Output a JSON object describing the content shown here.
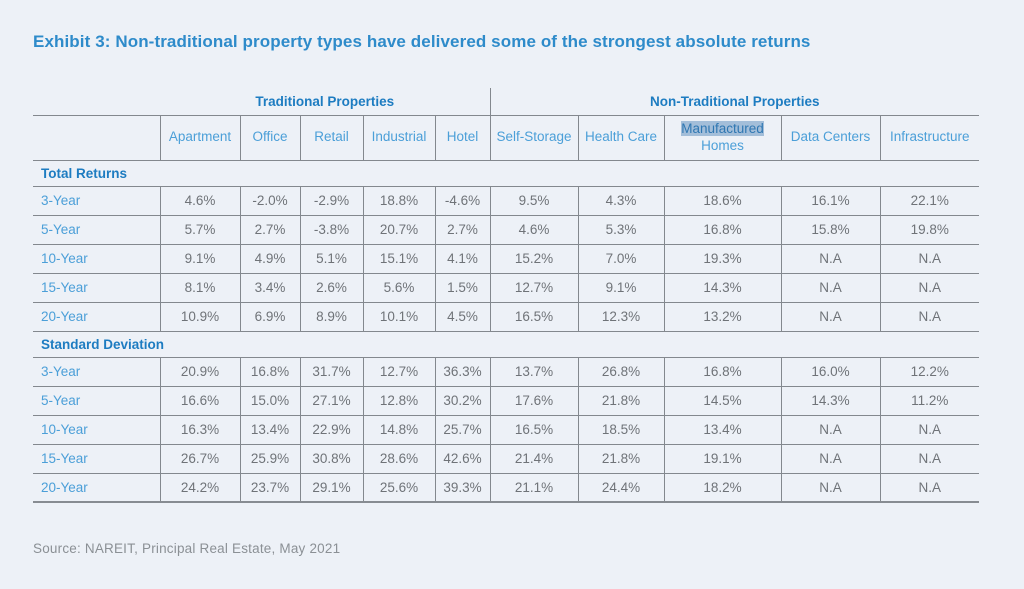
{
  "title": "Exhibit 3: Non-traditional property types have delivered some of the strongest absolute returns",
  "source": "Source: NAREIT, Principal Real Estate, May 2021",
  "colors": {
    "background": "#edf1f7",
    "title_blue": "#2e8bca",
    "header_blue": "#1d7cc1",
    "light_blue": "#4b9fd8",
    "value_gray": "#6f7378",
    "border_gray": "#83888e",
    "selection_highlight": "#a3bed9"
  },
  "table": {
    "group_headers": [
      {
        "label": "Traditional Properties",
        "span": 5
      },
      {
        "label": "Non-Traditional Properties",
        "span": 5
      }
    ],
    "columns": [
      {
        "label": "Apartment"
      },
      {
        "label": "Office"
      },
      {
        "label": "Retail"
      },
      {
        "label": "Industrial"
      },
      {
        "label": "Hotel"
      },
      {
        "label": "Self-Storage"
      },
      {
        "label": "Health Care"
      },
      {
        "label": "Manufactured Homes",
        "lines": [
          "Manufactured",
          "Homes"
        ],
        "highlighted_line": 0
      },
      {
        "label": "Data Centers"
      },
      {
        "label": "Infrastructure"
      }
    ],
    "sections": [
      {
        "label": "Total Returns",
        "rows": [
          {
            "label": "3-Year",
            "values": [
              "4.6%",
              "-2.0%",
              "-2.9%",
              "18.8%",
              "-4.6%",
              "9.5%",
              "4.3%",
              "18.6%",
              "16.1%",
              "22.1%"
            ]
          },
          {
            "label": "5-Year",
            "values": [
              "5.7%",
              "2.7%",
              "-3.8%",
              "20.7%",
              "2.7%",
              "4.6%",
              "5.3%",
              "16.8%",
              "15.8%",
              "19.8%"
            ]
          },
          {
            "label": "10-Year",
            "values": [
              "9.1%",
              "4.9%",
              "5.1%",
              "15.1%",
              "4.1%",
              "15.2%",
              "7.0%",
              "19.3%",
              "N.A",
              "N.A"
            ]
          },
          {
            "label": "15-Year",
            "values": [
              "8.1%",
              "3.4%",
              "2.6%",
              "5.6%",
              "1.5%",
              "12.7%",
              "9.1%",
              "14.3%",
              "N.A",
              "N.A"
            ]
          },
          {
            "label": "20-Year",
            "values": [
              "10.9%",
              "6.9%",
              "8.9%",
              "10.1%",
              "4.5%",
              "16.5%",
              "12.3%",
              "13.2%",
              "N.A",
              "N.A"
            ]
          }
        ]
      },
      {
        "label": "Standard Deviation",
        "rows": [
          {
            "label": "3-Year",
            "values": [
              "20.9%",
              "16.8%",
              "31.7%",
              "12.7%",
              "36.3%",
              "13.7%",
              "26.8%",
              "16.8%",
              "16.0%",
              "12.2%"
            ]
          },
          {
            "label": "5-Year",
            "values": [
              "16.6%",
              "15.0%",
              "27.1%",
              "12.8%",
              "30.2%",
              "17.6%",
              "21.8%",
              "14.5%",
              "14.3%",
              "11.2%"
            ]
          },
          {
            "label": "10-Year",
            "values": [
              "16.3%",
              "13.4%",
              "22.9%",
              "14.8%",
              "25.7%",
              "16.5%",
              "18.5%",
              "13.4%",
              "N.A",
              "N.A"
            ]
          },
          {
            "label": "15-Year",
            "values": [
              "26.7%",
              "25.9%",
              "30.8%",
              "28.6%",
              "42.6%",
              "21.4%",
              "21.8%",
              "19.1%",
              "N.A",
              "N.A"
            ]
          },
          {
            "label": "20-Year",
            "values": [
              "24.2%",
              "23.7%",
              "29.1%",
              "25.6%",
              "39.3%",
              "21.1%",
              "24.4%",
              "18.2%",
              "N.A",
              "N.A"
            ]
          }
        ]
      }
    ]
  }
}
